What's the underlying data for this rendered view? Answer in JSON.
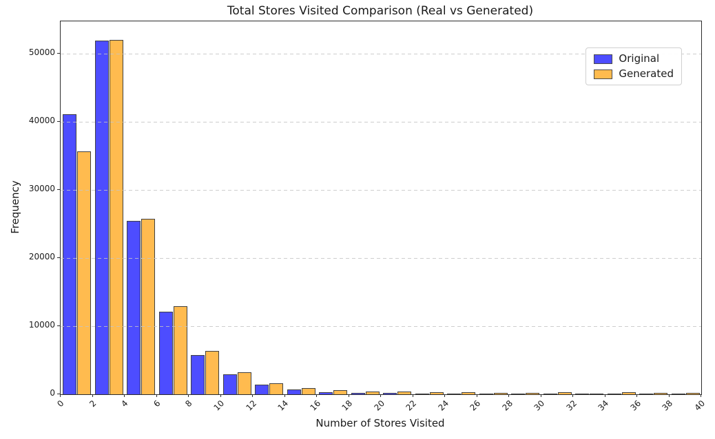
{
  "chart_data": {
    "type": "bar",
    "title": "Total Stores Visited Comparison (Real vs Generated)",
    "xlabel": "Number of Stores Visited",
    "ylabel": "Frequency",
    "categories": [
      "0-2",
      "2-4",
      "4-6",
      "6-8",
      "8-10",
      "10-12",
      "12-14",
      "14-16",
      "16-18",
      "18-20",
      "20-22",
      "22-24",
      "24-26",
      "26-28",
      "28-30",
      "30-32",
      "32-34",
      "34-36",
      "36-38",
      "38-40"
    ],
    "series": [
      {
        "name": "Original",
        "color": "#4D4DFF",
        "values": [
          41200,
          52000,
          25500,
          12100,
          5800,
          2950,
          1450,
          700,
          300,
          200,
          200,
          60,
          40,
          30,
          20,
          15,
          10,
          10,
          5,
          5
        ]
      },
      {
        "name": "Generated",
        "color": "#FFBB4F",
        "values": [
          35700,
          52100,
          25800,
          12900,
          6400,
          3250,
          1600,
          950,
          580,
          450,
          410,
          280,
          300,
          250,
          250,
          270,
          150,
          270,
          250,
          250
        ]
      }
    ],
    "xticks": [
      0,
      2,
      4,
      6,
      8,
      10,
      12,
      14,
      16,
      18,
      20,
      22,
      24,
      26,
      28,
      30,
      32,
      34,
      36,
      38,
      40
    ],
    "yticks": [
      0,
      10000,
      20000,
      30000,
      40000,
      50000
    ],
    "xlim": [
      0,
      40
    ],
    "ylim": [
      0,
      54800
    ],
    "bar_edge_color": "#404040",
    "grid": {
      "axis": "y",
      "style": "dashed",
      "color": "#c4c4c4"
    },
    "legend_position": "top-right"
  }
}
